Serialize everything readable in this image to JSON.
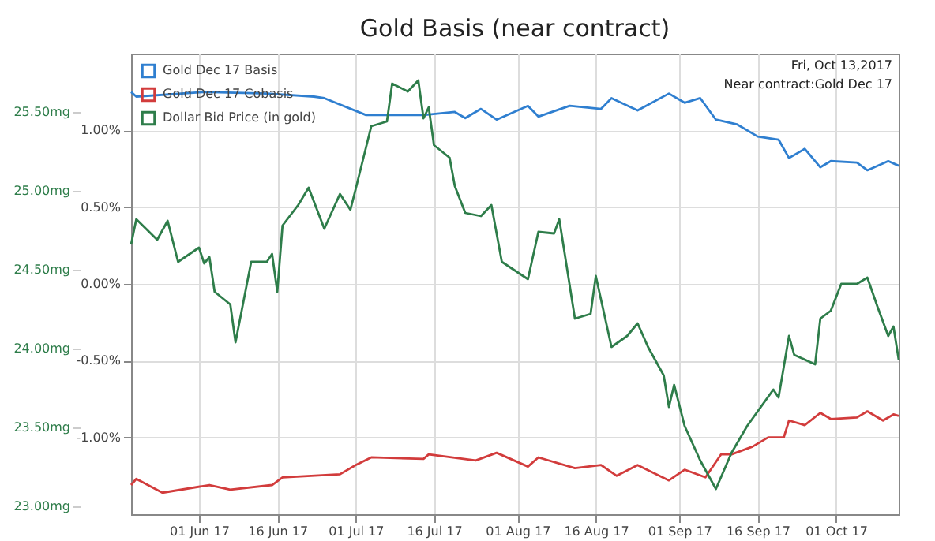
{
  "chart_data": {
    "type": "line",
    "title": "Gold Basis (near contract)",
    "annotations": [
      "Fri, Oct 13,2017",
      "Near contract:Gold Dec 17"
    ],
    "xlim": [
      "2017-05-19",
      "2017-10-13"
    ],
    "xticks": [
      {
        "value": "2017-06-01",
        "label": "01 Jun 17"
      },
      {
        "value": "2017-06-16",
        "label": "16 Jun 17"
      },
      {
        "value": "2017-07-01",
        "label": "01 Jul 17"
      },
      {
        "value": "2017-07-16",
        "label": "16 Jul 17"
      },
      {
        "value": "2017-08-01",
        "label": "01 Aug 17"
      },
      {
        "value": "2017-08-16",
        "label": "16 Aug 17"
      },
      {
        "value": "2017-09-01",
        "label": "01 Sep 17"
      },
      {
        "value": "2017-09-16",
        "label": "16 Sep 17"
      },
      {
        "value": "2017-10-01",
        "label": "01 Oct 17"
      }
    ],
    "ylim": [
      -1.5,
      1.5
    ],
    "yticks": [
      {
        "value": -1.0,
        "label": "-1.00%"
      },
      {
        "value": -0.5,
        "label": "-0.50%"
      },
      {
        "value": 0.0,
        "label": "0.00%"
      },
      {
        "value": 0.5,
        "label": "0.50%"
      },
      {
        "value": 1.0,
        "label": "1.00%"
      }
    ],
    "y2lim": [
      22.95,
      25.87
    ],
    "y2ticks": [
      {
        "value": 23.0,
        "label": "23.00mg"
      },
      {
        "value": 23.5,
        "label": "23.50mg"
      },
      {
        "value": 24.0,
        "label": "24.00mg"
      },
      {
        "value": 24.5,
        "label": "24.50mg"
      },
      {
        "value": 25.0,
        "label": "25.00mg"
      },
      {
        "value": 25.5,
        "label": "25.50mg"
      }
    ],
    "grid": true,
    "legend": "top left",
    "marker": "none",
    "line_style": "solid",
    "series": [
      {
        "name": "Gold Dec 17 Basis",
        "color": "#2f7fd0",
        "x": [
          "2017-05-19",
          "2017-05-20",
          "2017-06-02",
          "2017-06-14",
          "2017-06-23",
          "2017-06-25",
          "2017-07-03",
          "2017-07-14",
          "2017-07-20",
          "2017-07-22",
          "2017-07-25",
          "2017-07-28",
          "2017-08-03",
          "2017-08-05",
          "2017-08-11",
          "2017-08-17",
          "2017-08-19",
          "2017-08-24",
          "2017-08-30",
          "2017-09-02",
          "2017-09-05",
          "2017-09-08",
          "2017-09-12",
          "2017-09-16",
          "2017-09-20",
          "2017-09-22",
          "2017-09-25",
          "2017-09-28",
          "2017-09-30",
          "2017-10-05",
          "2017-10-07",
          "2017-10-11",
          "2017-10-13"
        ],
        "values": [
          1.25,
          1.22,
          1.25,
          1.24,
          1.22,
          1.21,
          1.1,
          1.1,
          1.12,
          1.08,
          1.14,
          1.07,
          1.16,
          1.09,
          1.16,
          1.14,
          1.21,
          1.13,
          1.24,
          1.18,
          1.21,
          1.07,
          1.04,
          0.96,
          0.94,
          0.82,
          0.88,
          0.76,
          0.8,
          0.79,
          0.74,
          0.8,
          0.77
        ]
      },
      {
        "name": "Gold Dec 17 Cobasis",
        "color": "#d23c3c",
        "x": [
          "2017-05-19",
          "2017-05-20",
          "2017-05-25",
          "2017-06-03",
          "2017-06-07",
          "2017-06-15",
          "2017-06-17",
          "2017-06-28",
          "2017-07-01",
          "2017-07-04",
          "2017-07-14",
          "2017-07-15",
          "2017-07-24",
          "2017-07-28",
          "2017-08-03",
          "2017-08-05",
          "2017-08-12",
          "2017-08-17",
          "2017-08-20",
          "2017-08-24",
          "2017-08-30",
          "2017-09-02",
          "2017-09-06",
          "2017-09-09",
          "2017-09-11",
          "2017-09-15",
          "2017-09-18",
          "2017-09-21",
          "2017-09-22",
          "2017-09-25",
          "2017-09-28",
          "2017-09-30",
          "2017-10-05",
          "2017-10-07",
          "2017-10-10",
          "2017-10-12",
          "2017-10-13"
        ],
        "values": [
          -1.31,
          -1.27,
          -1.36,
          -1.31,
          -1.34,
          -1.31,
          -1.26,
          -1.24,
          -1.18,
          -1.13,
          -1.14,
          -1.11,
          -1.15,
          -1.1,
          -1.19,
          -1.13,
          -1.2,
          -1.18,
          -1.25,
          -1.18,
          -1.28,
          -1.21,
          -1.26,
          -1.11,
          -1.11,
          -1.06,
          -1.0,
          -1.0,
          -0.89,
          -0.92,
          -0.84,
          -0.88,
          -0.87,
          -0.83,
          -0.89,
          -0.85,
          -0.86
        ]
      },
      {
        "name": "Dollar Bid Price (in gold)",
        "color": "#2e7d4a",
        "axis": "y2",
        "x": [
          "2017-05-19",
          "2017-05-20",
          "2017-05-24",
          "2017-05-26",
          "2017-05-28",
          "2017-06-01",
          "2017-06-02",
          "2017-06-03",
          "2017-06-04",
          "2017-06-07",
          "2017-06-08",
          "2017-06-11",
          "2017-06-14",
          "2017-06-15",
          "2017-06-16",
          "2017-06-17",
          "2017-06-20",
          "2017-06-22",
          "2017-06-25",
          "2017-06-28",
          "2017-06-30",
          "2017-07-01",
          "2017-07-04",
          "2017-07-07",
          "2017-07-08",
          "2017-07-11",
          "2017-07-13",
          "2017-07-14",
          "2017-07-15",
          "2017-07-16",
          "2017-07-19",
          "2017-07-20",
          "2017-07-22",
          "2017-07-25",
          "2017-07-27",
          "2017-07-29",
          "2017-08-03",
          "2017-08-05",
          "2017-08-08",
          "2017-08-09",
          "2017-08-12",
          "2017-08-15",
          "2017-08-16",
          "2017-08-19",
          "2017-08-22",
          "2017-08-24",
          "2017-08-26",
          "2017-08-29",
          "2017-08-30",
          "2017-08-31",
          "2017-09-02",
          "2017-09-05",
          "2017-09-08",
          "2017-09-11",
          "2017-09-14",
          "2017-09-19",
          "2017-09-20",
          "2017-09-22",
          "2017-09-23",
          "2017-09-27",
          "2017-09-28",
          "2017-09-30",
          "2017-10-02",
          "2017-10-05",
          "2017-10-07",
          "2017-10-09",
          "2017-10-11",
          "2017-10-12",
          "2017-10-13"
        ],
        "values": [
          24.66,
          24.82,
          24.69,
          24.81,
          24.55,
          24.64,
          24.54,
          24.58,
          24.36,
          24.28,
          24.04,
          24.55,
          24.55,
          24.6,
          24.36,
          24.78,
          24.91,
          25.02,
          24.76,
          24.98,
          24.88,
          25.01,
          25.41,
          25.44,
          25.68,
          25.63,
          25.7,
          25.46,
          25.53,
          25.29,
          25.21,
          25.03,
          24.86,
          24.84,
          24.91,
          24.55,
          24.44,
          24.74,
          24.73,
          24.82,
          24.19,
          24.22,
          24.46,
          24.01,
          24.08,
          24.16,
          24.01,
          23.83,
          23.63,
          23.77,
          23.51,
          23.29,
          23.11,
          23.34,
          23.51,
          23.74,
          23.69,
          24.08,
          23.96,
          23.9,
          24.19,
          24.24,
          24.41,
          24.41,
          24.45,
          24.26,
          24.08,
          24.14,
          23.93
        ]
      }
    ]
  }
}
